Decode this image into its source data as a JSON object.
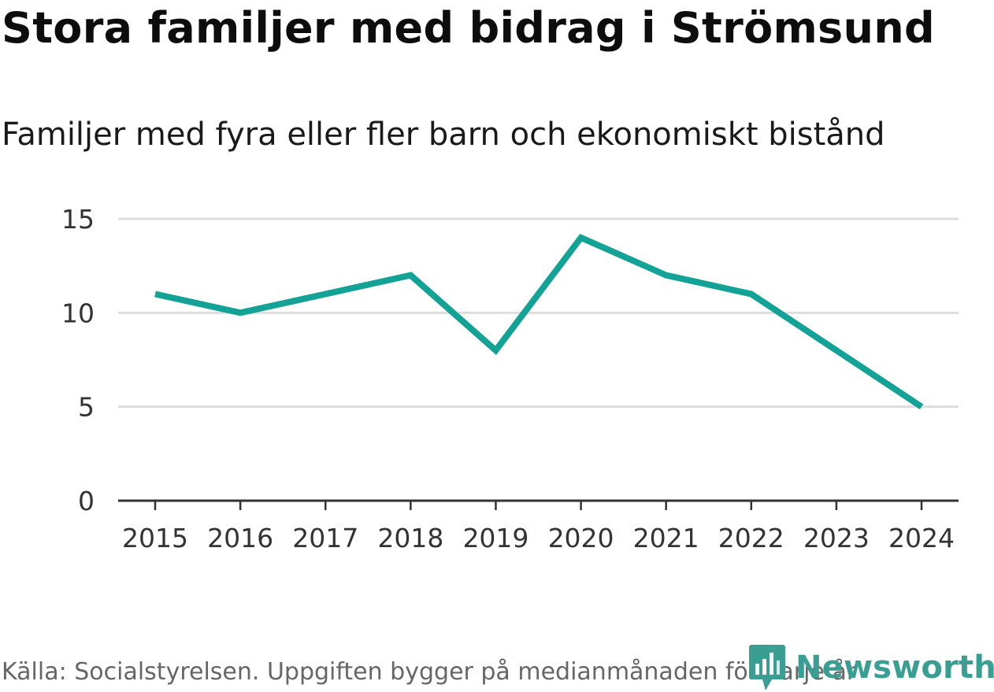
{
  "header": {
    "title": "Stora familjer med bidrag i Strömsund",
    "subtitle": "Familjer med fyra eller fler barn och ekonomiskt bistånd"
  },
  "footer": {
    "source": "Källa: Socialstyrelsen. Uppgiften bygger på medianmånaden för varje år",
    "brand": "Newsworthy"
  },
  "colors": {
    "line": "#13a396",
    "grid": "#dddddd",
    "axis": "#333333",
    "brand": "#3a9e93"
  },
  "icons": {
    "logo": "bar-chart-speech-bubble-icon"
  },
  "chart_data": {
    "type": "line",
    "title": "Stora familjer med bidrag i Strömsund",
    "subtitle": "Familjer med fyra eller fler barn och ekonomiskt bistånd",
    "xlabel": "",
    "ylabel": "",
    "categories": [
      "2015",
      "2016",
      "2017",
      "2018",
      "2019",
      "2020",
      "2021",
      "2022",
      "2023",
      "2024"
    ],
    "series": [
      {
        "name": "Familjer med fyra eller fler barn och ekonomiskt bistånd",
        "values": [
          11,
          10,
          11,
          12,
          8,
          14,
          12,
          11,
          8,
          5
        ]
      }
    ],
    "yticks": [
      0,
      5,
      10,
      15
    ],
    "ytick_labels": [
      "0",
      "5",
      "10",
      "15"
    ],
    "ylim": [
      0,
      15
    ],
    "grid": true,
    "legend": "none"
  }
}
